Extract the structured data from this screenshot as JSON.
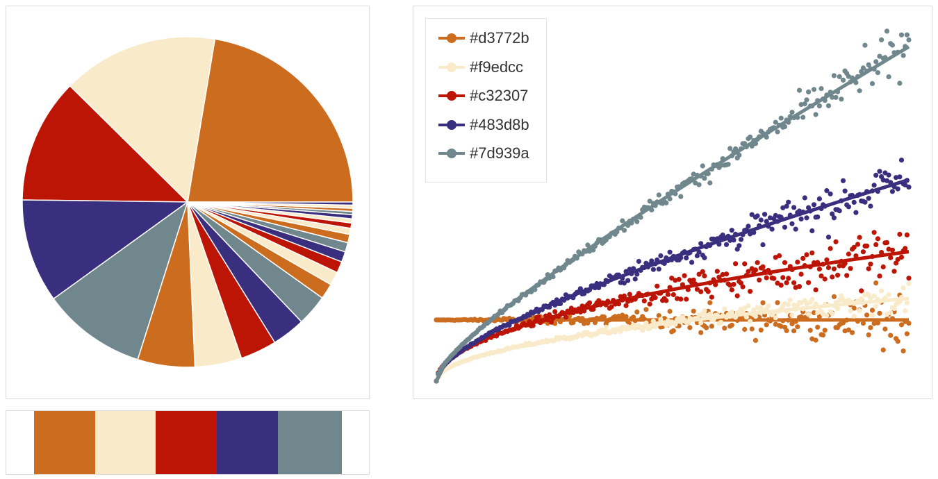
{
  "palette": [
    "#d3772b",
    "#f9edcc",
    "#c32307",
    "#483d8b",
    "#7d939a"
  ],
  "render_colors": [
    "#cc6c1f",
    "#f9ebca",
    "#bc1505",
    "#3a2e7e",
    "#6f878d"
  ],
  "chart_data": [
    {
      "type": "pie",
      "title": "",
      "slices": [
        {
          "value": 22.0,
          "color_index": 0
        },
        {
          "value": 15.0,
          "color_index": 1
        },
        {
          "value": 12.0,
          "color_index": 2
        },
        {
          "value": 10.0,
          "color_index": 3
        },
        {
          "value": 10.0,
          "color_index": 4
        },
        {
          "value": 5.5,
          "color_index": 0
        },
        {
          "value": 4.5,
          "color_index": 1
        },
        {
          "value": 3.5,
          "color_index": 2
        },
        {
          "value": 3.2,
          "color_index": 3
        },
        {
          "value": 3.0,
          "color_index": 4
        },
        {
          "value": 1.5,
          "color_index": 0
        },
        {
          "value": 1.3,
          "color_index": 1
        },
        {
          "value": 1.1,
          "color_index": 2
        },
        {
          "value": 1.0,
          "color_index": 3
        },
        {
          "value": 0.9,
          "color_index": 4
        },
        {
          "value": 0.8,
          "color_index": 0
        },
        {
          "value": 0.6,
          "color_index": 1
        },
        {
          "value": 0.5,
          "color_index": 2
        },
        {
          "value": 0.4,
          "color_index": 1
        },
        {
          "value": 0.4,
          "color_index": 3
        },
        {
          "value": 0.3,
          "color_index": 4
        },
        {
          "value": 0.3,
          "color_index": 0
        },
        {
          "value": 0.3,
          "color_index": 1
        },
        {
          "value": 0.3,
          "color_index": 3
        }
      ]
    },
    {
      "type": "scatter",
      "title": "",
      "xlabel": "",
      "ylabel": "",
      "xlim": [
        0,
        1
      ],
      "ylim": [
        0,
        1
      ],
      "grid": false,
      "legend_position": "top-left",
      "series": [
        {
          "name": "#d3772b",
          "color_index": 0,
          "y_start": 0.17,
          "y_end": 0.17,
          "shape": "flat",
          "spread": 0.055
        },
        {
          "name": "#f9edcc",
          "color_index": 1,
          "y_start": 0.0,
          "y_end": 0.23,
          "shape": "sqrt",
          "spread": 0.03
        },
        {
          "name": "#c32307",
          "color_index": 2,
          "y_start": 0.0,
          "y_end": 0.36,
          "shape": "sqrt",
          "spread": 0.06
        },
        {
          "name": "#483d8b",
          "color_index": 3,
          "y_start": 0.0,
          "y_end": 0.56,
          "shape": "mixed",
          "spread": 0.05
        },
        {
          "name": "#7d939a",
          "color_index": 4,
          "y_start": 0.0,
          "y_end": 0.93,
          "shape": "mixed2",
          "spread": 0.045
        }
      ]
    }
  ]
}
